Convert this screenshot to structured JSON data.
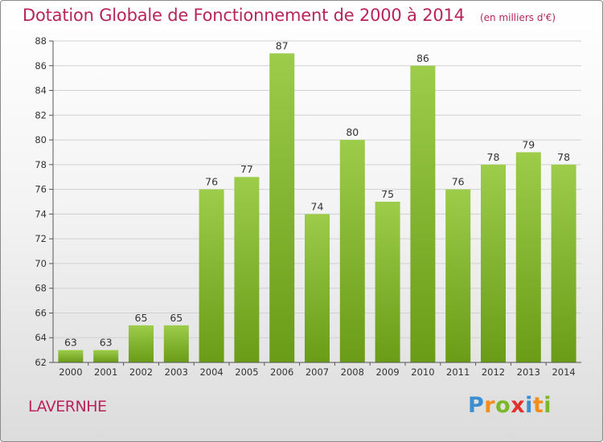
{
  "chart_data": {
    "type": "bar",
    "title": "Dotation Globale de Fonctionnement de 2000 à 2014",
    "subtitle": "(en milliers d'€)",
    "categories": [
      "2000",
      "2001",
      "2002",
      "2003",
      "2004",
      "2005",
      "2006",
      "2007",
      "2008",
      "2009",
      "2010",
      "2011",
      "2012",
      "2013",
      "2014"
    ],
    "values": [
      63,
      63,
      65,
      65,
      76,
      77,
      87,
      74,
      80,
      75,
      86,
      76,
      78,
      79,
      78
    ],
    "xlabel": "",
    "ylabel": "",
    "ylim": [
      62,
      88
    ],
    "yticks": [
      62,
      64,
      66,
      68,
      70,
      72,
      74,
      76,
      78,
      80,
      82,
      84,
      86,
      88
    ],
    "grid": true,
    "legend": "none",
    "data_labels": true
  },
  "commune": "LAVERNHE",
  "logo": {
    "text": "Proxiti",
    "letters": [
      "P",
      "r",
      "o",
      "x",
      "i",
      "t",
      "i"
    ],
    "colors": [
      "#3a8fd4",
      "#f28c1c",
      "#7ab828",
      "#e2312d",
      "#3a8fd4",
      "#f28c1c",
      "#7ab828"
    ]
  },
  "colors": {
    "bar_light": "#9ccc4a",
    "bar_dark": "#6a9c18",
    "title": "#b8245a",
    "grid": "#d0d0d0",
    "axis": "#555555"
  }
}
